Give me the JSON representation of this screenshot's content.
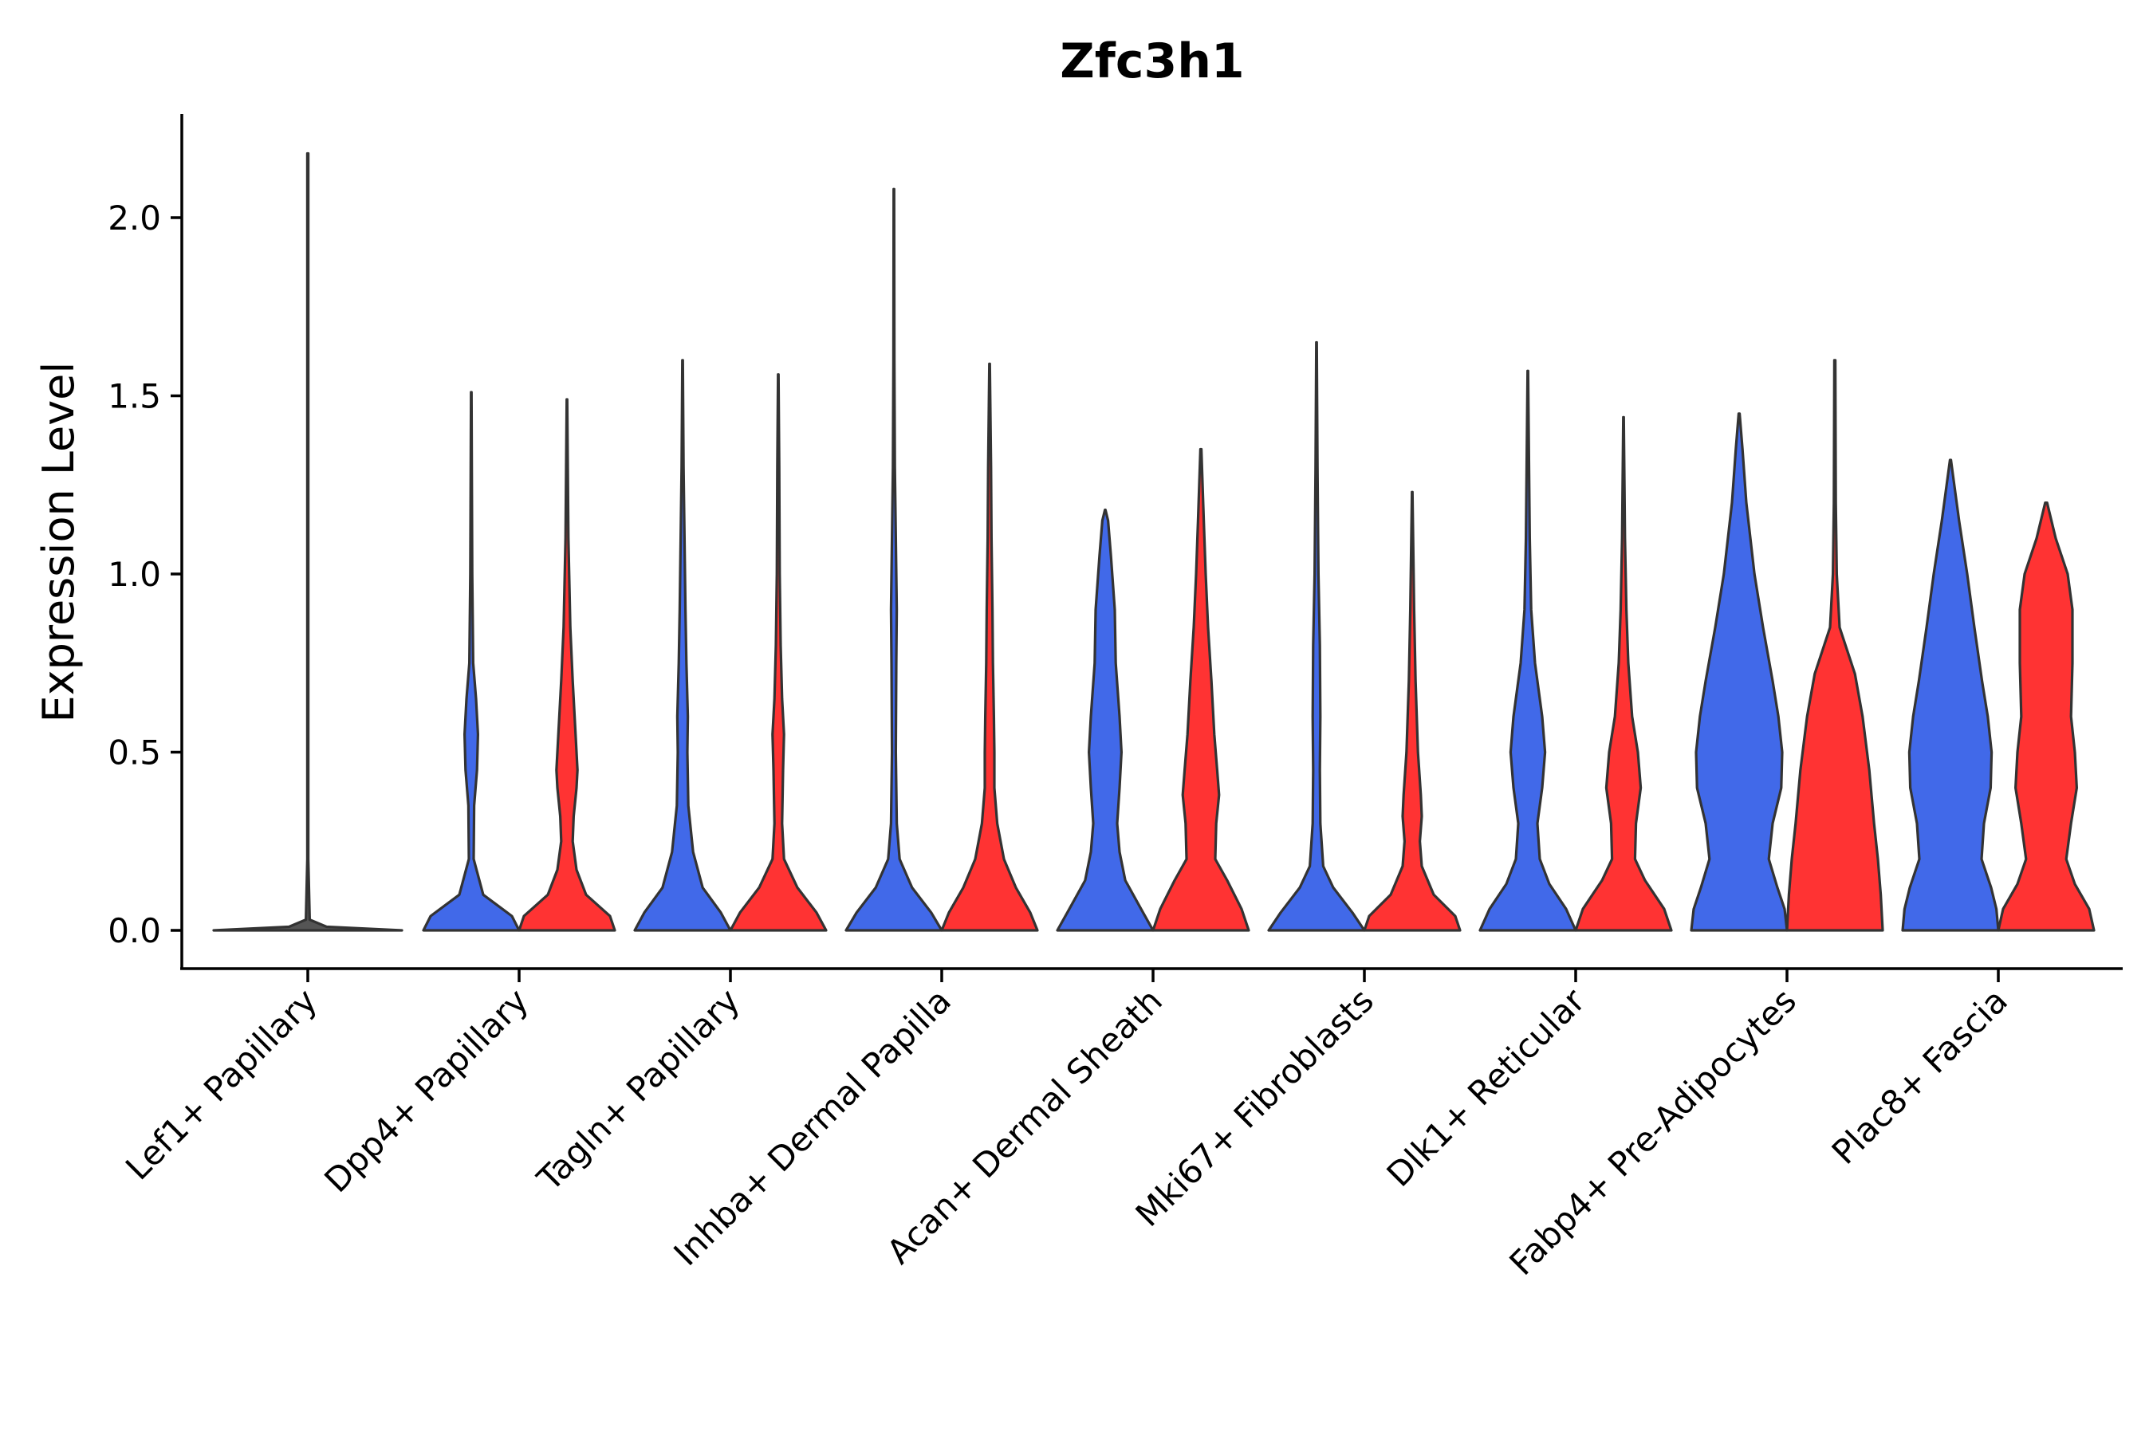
{
  "chart_data": {
    "type": "violin",
    "title": "Zfc3h1",
    "xlabel": "",
    "ylabel": "Expression Level",
    "ylim": [
      -0.11,
      2.3
    ],
    "yticks": [
      0.0,
      0.5,
      1.0,
      1.5,
      2.0
    ],
    "ytick_labels": [
      "0.0",
      "0.5",
      "1.0",
      "1.5",
      "2.0"
    ],
    "grid": false,
    "legend": "none",
    "colors": {
      "blue": "#4169E9",
      "red": "#FF3333",
      "single": "#555555"
    },
    "categories": [
      "Lef1+ Papillary",
      "Dpp4+ Papillary",
      "Tagln+ Papillary",
      "Inhba+ Dermal Papilla",
      "Acan+ Dermal Sheath",
      "Mki67+ Fibroblasts",
      "Dlk1+ Reticular",
      "Fabp4+ Pre-Adipocytes",
      "Plac8+ Fascia"
    ],
    "series": [
      {
        "name": "blue",
        "color": "#4169E9",
        "max_values": [
          null,
          1.51,
          1.6,
          2.08,
          1.18,
          1.65,
          1.57,
          1.45,
          1.32
        ],
        "shape": [
          null,
          [
            [
              0,
              1
            ],
            [
              0.04,
              0.85
            ],
            [
              0.1,
              0.25
            ],
            [
              0.2,
              0.05
            ],
            [
              0.35,
              0.06
            ],
            [
              0.45,
              0.12
            ],
            [
              0.55,
              0.14
            ],
            [
              0.65,
              0.1
            ],
            [
              0.75,
              0.04
            ],
            [
              1.0,
              0.02
            ],
            [
              1.51,
              0.005
            ]
          ],
          [
            [
              0,
              1
            ],
            [
              0.05,
              0.8
            ],
            [
              0.12,
              0.42
            ],
            [
              0.22,
              0.22
            ],
            [
              0.35,
              0.12
            ],
            [
              0.5,
              0.1
            ],
            [
              0.6,
              0.11
            ],
            [
              0.75,
              0.08
            ],
            [
              0.9,
              0.06
            ],
            [
              1.1,
              0.04
            ],
            [
              1.3,
              0.02
            ],
            [
              1.6,
              0.005
            ]
          ],
          [
            [
              0,
              1
            ],
            [
              0.05,
              0.78
            ],
            [
              0.12,
              0.38
            ],
            [
              0.2,
              0.12
            ],
            [
              0.3,
              0.06
            ],
            [
              0.5,
              0.04
            ],
            [
              0.75,
              0.05
            ],
            [
              0.9,
              0.06
            ],
            [
              1.1,
              0.04
            ],
            [
              1.3,
              0.02
            ],
            [
              1.6,
              0.01
            ],
            [
              2.08,
              0.005
            ]
          ],
          [
            [
              0,
              1
            ],
            [
              0.06,
              0.75
            ],
            [
              0.14,
              0.42
            ],
            [
              0.22,
              0.3
            ],
            [
              0.3,
              0.25
            ],
            [
              0.4,
              0.3
            ],
            [
              0.5,
              0.34
            ],
            [
              0.6,
              0.3
            ],
            [
              0.75,
              0.22
            ],
            [
              0.9,
              0.2
            ],
            [
              1.05,
              0.12
            ],
            [
              1.15,
              0.06
            ],
            [
              1.18,
              0.005
            ]
          ],
          [
            [
              0,
              1
            ],
            [
              0.05,
              0.75
            ],
            [
              0.12,
              0.35
            ],
            [
              0.18,
              0.14
            ],
            [
              0.3,
              0.08
            ],
            [
              0.45,
              0.07
            ],
            [
              0.6,
              0.08
            ],
            [
              0.8,
              0.07
            ],
            [
              1.0,
              0.04
            ],
            [
              1.3,
              0.02
            ],
            [
              1.65,
              0.005
            ]
          ],
          [
            [
              0,
              1
            ],
            [
              0.06,
              0.8
            ],
            [
              0.13,
              0.45
            ],
            [
              0.2,
              0.25
            ],
            [
              0.3,
              0.2
            ],
            [
              0.4,
              0.3
            ],
            [
              0.5,
              0.36
            ],
            [
              0.6,
              0.3
            ],
            [
              0.75,
              0.15
            ],
            [
              0.9,
              0.07
            ],
            [
              1.1,
              0.04
            ],
            [
              1.57,
              0.005
            ]
          ],
          [
            [
              0,
              1
            ],
            [
              0.06,
              0.95
            ],
            [
              0.12,
              0.8
            ],
            [
              0.2,
              0.62
            ],
            [
              0.3,
              0.7
            ],
            [
              0.4,
              0.88
            ],
            [
              0.5,
              0.9
            ],
            [
              0.6,
              0.82
            ],
            [
              0.7,
              0.7
            ],
            [
              0.85,
              0.5
            ],
            [
              1.0,
              0.32
            ],
            [
              1.2,
              0.15
            ],
            [
              1.35,
              0.07
            ],
            [
              1.45,
              0.01
            ]
          ],
          [
            [
              0,
              1
            ],
            [
              0.06,
              0.96
            ],
            [
              0.12,
              0.85
            ],
            [
              0.2,
              0.65
            ],
            [
              0.3,
              0.7
            ],
            [
              0.4,
              0.84
            ],
            [
              0.5,
              0.86
            ],
            [
              0.6,
              0.78
            ],
            [
              0.7,
              0.66
            ],
            [
              0.85,
              0.5
            ],
            [
              1.0,
              0.35
            ],
            [
              1.15,
              0.18
            ],
            [
              1.25,
              0.08
            ],
            [
              1.32,
              0.01
            ]
          ]
        ]
      },
      {
        "name": "red",
        "color": "#FF3333",
        "max_values": [
          null,
          1.49,
          1.56,
          1.59,
          1.35,
          1.23,
          1.44,
          1.6,
          1.2
        ],
        "shape": [
          null,
          [
            [
              0,
              1
            ],
            [
              0.04,
              0.9
            ],
            [
              0.1,
              0.4
            ],
            [
              0.17,
              0.2
            ],
            [
              0.25,
              0.12
            ],
            [
              0.32,
              0.14
            ],
            [
              0.4,
              0.2
            ],
            [
              0.45,
              0.22
            ],
            [
              0.55,
              0.18
            ],
            [
              0.7,
              0.12
            ],
            [
              0.85,
              0.07
            ],
            [
              1.1,
              0.03
            ],
            [
              1.49,
              0.005
            ]
          ],
          [
            [
              0,
              1
            ],
            [
              0.05,
              0.8
            ],
            [
              0.12,
              0.4
            ],
            [
              0.2,
              0.12
            ],
            [
              0.3,
              0.08
            ],
            [
              0.45,
              0.1
            ],
            [
              0.55,
              0.12
            ],
            [
              0.65,
              0.08
            ],
            [
              0.8,
              0.05
            ],
            [
              1.0,
              0.03
            ],
            [
              1.3,
              0.02
            ],
            [
              1.56,
              0.005
            ]
          ],
          [
            [
              0,
              1
            ],
            [
              0.05,
              0.85
            ],
            [
              0.12,
              0.55
            ],
            [
              0.2,
              0.3
            ],
            [
              0.3,
              0.16
            ],
            [
              0.4,
              0.1
            ],
            [
              0.5,
              0.1
            ],
            [
              0.6,
              0.09
            ],
            [
              0.75,
              0.07
            ],
            [
              0.9,
              0.06
            ],
            [
              1.1,
              0.04
            ],
            [
              1.3,
              0.03
            ],
            [
              1.59,
              0.005
            ]
          ],
          [
            [
              0,
              1
            ],
            [
              0.06,
              0.85
            ],
            [
              0.14,
              0.55
            ],
            [
              0.2,
              0.3
            ],
            [
              0.3,
              0.32
            ],
            [
              0.38,
              0.38
            ],
            [
              0.45,
              0.34
            ],
            [
              0.55,
              0.28
            ],
            [
              0.7,
              0.22
            ],
            [
              0.85,
              0.15
            ],
            [
              1.0,
              0.1
            ],
            [
              1.15,
              0.06
            ],
            [
              1.35,
              0.01
            ]
          ],
          [
            [
              0,
              1
            ],
            [
              0.04,
              0.9
            ],
            [
              0.1,
              0.45
            ],
            [
              0.18,
              0.2
            ],
            [
              0.25,
              0.16
            ],
            [
              0.32,
              0.2
            ],
            [
              0.38,
              0.18
            ],
            [
              0.5,
              0.12
            ],
            [
              0.7,
              0.07
            ],
            [
              0.9,
              0.04
            ],
            [
              1.23,
              0.005
            ]
          ],
          [
            [
              0,
              1
            ],
            [
              0.06,
              0.85
            ],
            [
              0.14,
              0.45
            ],
            [
              0.2,
              0.24
            ],
            [
              0.3,
              0.26
            ],
            [
              0.4,
              0.36
            ],
            [
              0.5,
              0.3
            ],
            [
              0.6,
              0.18
            ],
            [
              0.75,
              0.1
            ],
            [
              0.9,
              0.06
            ],
            [
              1.1,
              0.03
            ],
            [
              1.44,
              0.005
            ]
          ],
          [
            [
              0,
              1
            ],
            [
              0.1,
              0.96
            ],
            [
              0.2,
              0.9
            ],
            [
              0.3,
              0.82
            ],
            [
              0.45,
              0.72
            ],
            [
              0.6,
              0.58
            ],
            [
              0.72,
              0.42
            ],
            [
              0.85,
              0.1
            ],
            [
              1.0,
              0.04
            ],
            [
              1.2,
              0.02
            ],
            [
              1.6,
              0.01
            ]
          ],
          [
            [
              0,
              1
            ],
            [
              0.06,
              0.9
            ],
            [
              0.13,
              0.6
            ],
            [
              0.2,
              0.42
            ],
            [
              0.3,
              0.52
            ],
            [
              0.4,
              0.64
            ],
            [
              0.5,
              0.6
            ],
            [
              0.6,
              0.52
            ],
            [
              0.75,
              0.55
            ],
            [
              0.9,
              0.55
            ],
            [
              1.0,
              0.45
            ],
            [
              1.1,
              0.2
            ],
            [
              1.2,
              0.02
            ]
          ]
        ]
      },
      {
        "name": "single",
        "color": "#555555",
        "category": "Lef1+ Papillary",
        "max_value": 2.18,
        "shape": [
          [
            0,
            1
          ],
          [
            0.01,
            0.2
          ],
          [
            0.03,
            0.02
          ],
          [
            0.2,
            0.005
          ],
          [
            2.18,
            0.005
          ]
        ]
      }
    ]
  }
}
